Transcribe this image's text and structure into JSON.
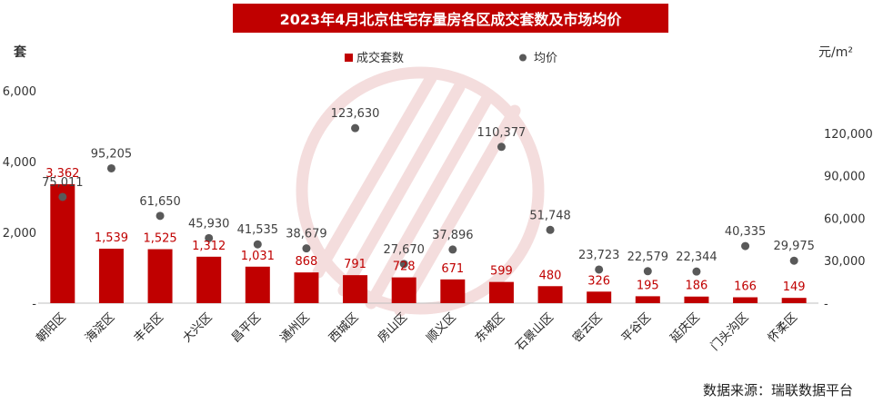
{
  "chart_data": {
    "type": "bar",
    "title": "2023年4月北京住宅存量房各区成交套数及市场均价",
    "source": "数据来源：瑞联数据平台",
    "categories": [
      "朝阳区",
      "海淀区",
      "丰台区",
      "大兴区",
      "昌平区",
      "通州区",
      "西城区",
      "房山区",
      "顺义区",
      "东城区",
      "石景山区",
      "密云区",
      "平谷区",
      "延庆区",
      "门头沟区",
      "怀柔区"
    ],
    "series": [
      {
        "name": "成交套数",
        "type": "bar",
        "axis": "left",
        "color": "#c00000",
        "values": [
          3362,
          1539,
          1525,
          1312,
          1031,
          868,
          791,
          728,
          671,
          599,
          480,
          326,
          195,
          186,
          166,
          149
        ],
        "labels": [
          "3,362",
          "1,539",
          "1,525",
          "1,312",
          "1,031",
          "868",
          "791",
          "728",
          "671",
          "599",
          "480",
          "326",
          "195",
          "186",
          "166",
          "149"
        ]
      },
      {
        "name": "均价",
        "type": "scatter",
        "axis": "right",
        "color": "#595959",
        "values": [
          75011,
          95205,
          61650,
          45930,
          41535,
          38679,
          123630,
          27670,
          37896,
          110377,
          51748,
          23723,
          22579,
          22344,
          40335,
          29975
        ],
        "labels": [
          "75,011",
          "95,205",
          "61,650",
          "45,930",
          "41,535",
          "38,679",
          "123,630",
          "27,670",
          "37,896",
          "110,377",
          "51,748",
          "23,723",
          "22,579",
          "22,344",
          "40,335",
          "29,975"
        ]
      }
    ],
    "left_axis": {
      "unit": "套",
      "ylim": [
        0,
        6000
      ],
      "ticks": [
        {
          "v": 0,
          "label": "-"
        },
        {
          "v": 2000,
          "label": "2,000"
        },
        {
          "v": 4000,
          "label": "4,000"
        },
        {
          "v": 6000,
          "label": "6,000"
        }
      ]
    },
    "right_axis": {
      "unit": "元/m²",
      "ylim": [
        0,
        150000
      ],
      "ticks": [
        {
          "v": 0,
          "label": "-"
        },
        {
          "v": 30000,
          "label": "30,000"
        },
        {
          "v": 60000,
          "label": "60,000"
        },
        {
          "v": 90000,
          "label": "90,000"
        },
        {
          "v": 120000,
          "label": "120,000"
        }
      ]
    },
    "legend": "top-center",
    "grid": false
  }
}
